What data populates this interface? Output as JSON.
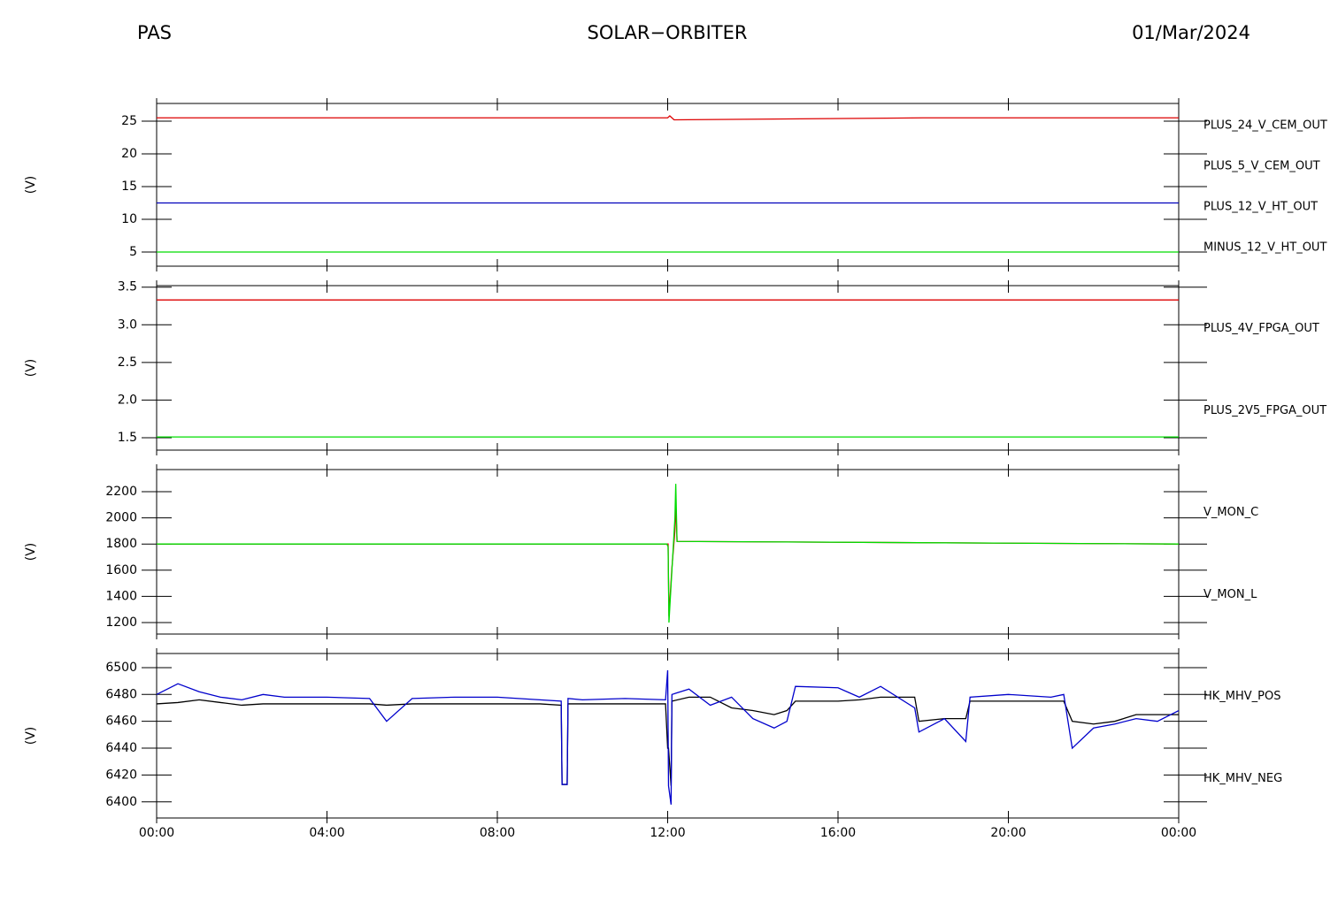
{
  "header": {
    "left": "PAS",
    "center": "SOLAR−ORBITER",
    "right": "01/Mar/2024"
  },
  "chart_data": [
    {
      "type": "line",
      "ylabel": "(V)",
      "xlim": [
        0,
        24
      ],
      "ylim": [
        2.84,
        27.7
      ],
      "yticks": [
        5,
        10,
        15,
        20,
        25
      ],
      "x": [
        0,
        6,
        12,
        12.05,
        12.15,
        18,
        24
      ],
      "series": [
        {
          "name": "PLUS_24_V_CEM_OUT",
          "color": "#dd0000",
          "values": [
            25.5,
            25.5,
            25.5,
            25.8,
            25.2,
            25.5,
            25.5
          ]
        },
        {
          "name": "PLUS_5_V_CEM_OUT",
          "color": "#00dd00",
          "values": [
            5.0,
            5.0,
            5.0,
            5.0,
            5.0,
            5.0,
            5.0
          ]
        },
        {
          "name": "PLUS_12_V_HT_OUT",
          "color": "#0000bb",
          "values": [
            12.5,
            12.5,
            12.5,
            12.5,
            12.5,
            12.5,
            12.5
          ]
        },
        {
          "name": "MINUS_12_V_HT_OUT",
          "color": "#000000",
          "values": [
            null,
            null,
            null,
            null,
            null,
            null,
            null
          ]
        }
      ]
    },
    {
      "type": "line",
      "ylabel": "(V)",
      "xlim": [
        0,
        24
      ],
      "ylim": [
        1.335,
        3.52
      ],
      "yticks": [
        1.5,
        {
          "value": 2,
          "label": "2.0"
        },
        2.5,
        {
          "value": 3,
          "label": "3.0"
        },
        3.5
      ],
      "x": [
        0,
        24
      ],
      "series": [
        {
          "name": "PLUS_4V_FPGA_OUT",
          "color": "#dd0000",
          "values": [
            3.33,
            3.33
          ]
        },
        {
          "name": "PLUS_2V5_FPGA_OUT",
          "color": "#00dd00",
          "values": [
            1.51,
            1.51
          ]
        }
      ]
    },
    {
      "type": "line",
      "ylabel": "(V)",
      "xlim": [
        0,
        24
      ],
      "ylim": [
        1112,
        2369
      ],
      "yticks": [
        1200,
        1400,
        1600,
        1800,
        2000,
        2200
      ],
      "x": [
        0,
        11.98,
        12.01,
        12.03,
        12.1,
        12.17,
        12.19,
        12.22,
        24
      ],
      "series": [
        {
          "name": "V_MON_C",
          "color": "#dd0000",
          "values": [
            1800,
            1800,
            1800,
            1250,
            1620,
            1900,
            2120,
            1820,
            1800
          ]
        },
        {
          "name": "V_MON_L",
          "color": "#00dd00",
          "values": [
            1800,
            1800,
            1780,
            1200,
            1600,
            2000,
            2260,
            1820,
            1800
          ]
        }
      ]
    },
    {
      "type": "line",
      "ylabel": "(V)",
      "xlim": [
        0,
        24
      ],
      "ylim": [
        6388,
        6510.5
      ],
      "yticks": [
        6400,
        6420,
        6440,
        6460,
        6480,
        6500
      ],
      "xticks": [
        {
          "value": 0,
          "label": "00:00"
        },
        {
          "value": 4,
          "label": "04:00"
        },
        {
          "value": 8,
          "label": "08:00"
        },
        {
          "value": 12,
          "label": "12:00"
        },
        {
          "value": 16,
          "label": "16:00"
        },
        {
          "value": 20,
          "label": "20:00"
        },
        {
          "value": 24,
          "label": "00:00"
        }
      ],
      "x": [
        0,
        0.5,
        1,
        1.5,
        2,
        2.5,
        3,
        4,
        5,
        5.4,
        6,
        7,
        8,
        9,
        9.5,
        9.52,
        9.64,
        9.66,
        10,
        11,
        11.95,
        12.0,
        12.02,
        12.08,
        12.1,
        12.5,
        13,
        13.5,
        14,
        14.5,
        14.8,
        15,
        16,
        16.5,
        17,
        17.8,
        17.9,
        18.5,
        19,
        19.1,
        20,
        21,
        21.3,
        21.5,
        22,
        22.5,
        23,
        23.5,
        24
      ],
      "series": [
        {
          "name": "HK_MHV_POS",
          "color": "#000000",
          "values": [
            6473,
            6474,
            6476,
            6474,
            6472,
            6473,
            6473,
            6473,
            6473,
            6472,
            6473,
            6473,
            6473,
            6473,
            6472,
            6413,
            6413,
            6473,
            6473,
            6473,
            6473,
            6440,
            6440,
            6412,
            6475,
            6478,
            6478,
            6470,
            6468,
            6465,
            6468,
            6475,
            6475,
            6476,
            6478,
            6478,
            6460,
            6462,
            6462,
            6475,
            6475,
            6475,
            6475,
            6460,
            6458,
            6460,
            6465,
            6465,
            6465
          ]
        },
        {
          "name": "HK_MHV_NEG",
          "color": "#0000cc",
          "values": [
            6480,
            6488,
            6482,
            6478,
            6476,
            6480,
            6478,
            6478,
            6477,
            6460,
            6477,
            6478,
            6478,
            6476,
            6475,
            6413,
            6413,
            6477,
            6476,
            6477,
            6476,
            6498,
            6412,
            6398,
            6480,
            6484,
            6472,
            6478,
            6462,
            6455,
            6460,
            6486,
            6485,
            6478,
            6486,
            6470,
            6452,
            6462,
            6445,
            6478,
            6480,
            6478,
            6480,
            6440,
            6455,
            6458,
            6462,
            6460,
            6468
          ]
        }
      ]
    }
  ]
}
